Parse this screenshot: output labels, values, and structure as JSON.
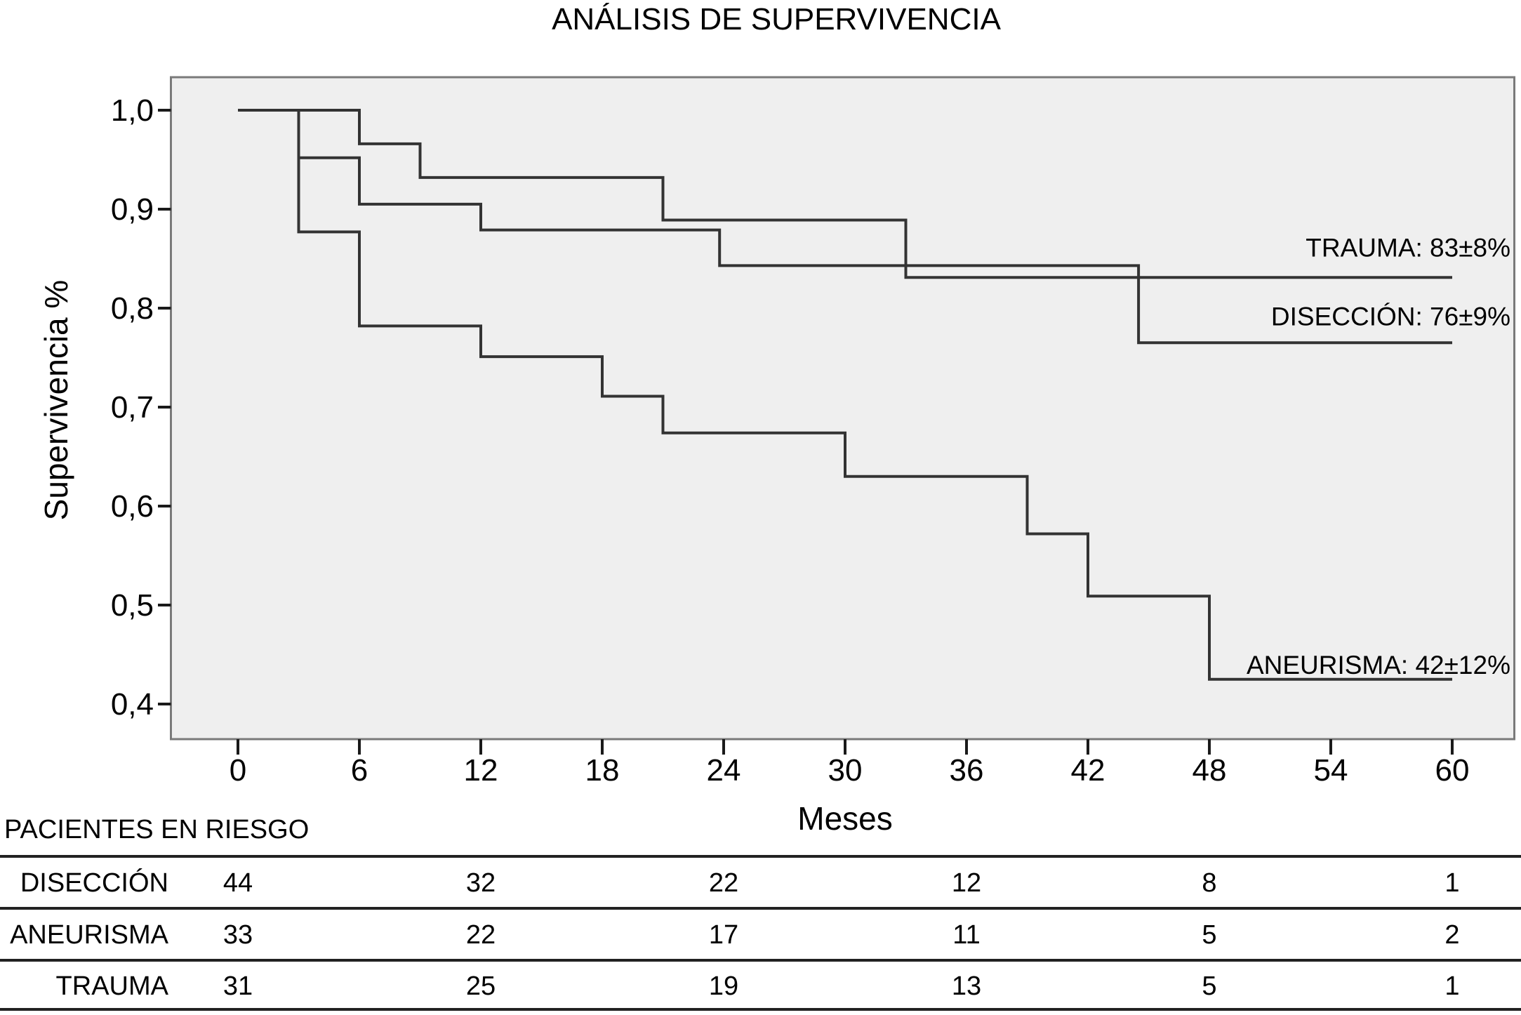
{
  "title": "ANÁLISIS DE SUPERVIVENCIA",
  "chart_data": {
    "type": "line",
    "subtype": "kaplan-meier-step",
    "title": "ANÁLISIS DE SUPERVIVENCIA",
    "xlabel": "Meses",
    "ylabel": "Supervivencia %",
    "xlim": [
      0,
      60
    ],
    "ylim": [
      0.4,
      1.0
    ],
    "grid": false,
    "legend_position": "end-of-curve-right",
    "x_ticks": [
      {
        "month": 0,
        "label": "0"
      },
      {
        "month": 6,
        "label": "6"
      },
      {
        "month": 12,
        "label": "12"
      },
      {
        "month": 18,
        "label": "18"
      },
      {
        "month": 24,
        "label": "24"
      },
      {
        "month": 30,
        "label": "30"
      },
      {
        "month": 36,
        "label": "36"
      },
      {
        "month": 42,
        "label": "42"
      },
      {
        "month": 48,
        "label": "48"
      },
      {
        "month": 54,
        "label": "54"
      },
      {
        "month": 60,
        "label": "60"
      }
    ],
    "y_ticks": [
      {
        "value": 1.0,
        "label": "1,0"
      },
      {
        "value": 0.9,
        "label": "0,9"
      },
      {
        "value": 0.8,
        "label": "0,8"
      },
      {
        "value": 0.7,
        "label": "0,7"
      },
      {
        "value": 0.6,
        "label": "0,6"
      },
      {
        "value": 0.5,
        "label": "0,5"
      },
      {
        "value": 0.4,
        "label": "0,4"
      }
    ],
    "series": [
      {
        "name": "TRAUMA",
        "annotation": "TRAUMA: 83±8%",
        "final_estimate": "83±8%",
        "steps": [
          [
            0,
            1.0
          ],
          [
            6,
            1.0
          ],
          [
            6,
            0.966
          ],
          [
            9,
            0.966
          ],
          [
            9,
            0.932
          ],
          [
            21,
            0.932
          ],
          [
            21,
            0.889
          ],
          [
            33,
            0.889
          ],
          [
            33,
            0.831
          ],
          [
            60,
            0.831
          ]
        ]
      },
      {
        "name": "DISECCIÓN",
        "annotation": "DISECCIÓN: 76±9%",
        "final_estimate": "76±9%",
        "steps": [
          [
            0,
            1.0
          ],
          [
            3,
            1.0
          ],
          [
            3,
            0.952
          ],
          [
            6,
            0.952
          ],
          [
            6,
            0.905
          ],
          [
            12,
            0.905
          ],
          [
            12,
            0.879
          ],
          [
            23.8,
            0.879
          ],
          [
            23.8,
            0.843
          ],
          [
            44.5,
            0.843
          ],
          [
            44.5,
            0.765
          ],
          [
            60,
            0.765
          ]
        ]
      },
      {
        "name": "ANEURISMA",
        "annotation": "ANEURISMA: 42±12%",
        "final_estimate": "42±12%",
        "steps": [
          [
            0,
            1.0
          ],
          [
            3,
            1.0
          ],
          [
            3,
            0.877
          ],
          [
            6,
            0.877
          ],
          [
            6,
            0.782
          ],
          [
            12,
            0.782
          ],
          [
            12,
            0.751
          ],
          [
            18,
            0.751
          ],
          [
            18,
            0.711
          ],
          [
            21,
            0.711
          ],
          [
            21,
            0.674
          ],
          [
            30,
            0.674
          ],
          [
            30,
            0.63
          ],
          [
            39,
            0.63
          ],
          [
            39,
            0.572
          ],
          [
            42,
            0.572
          ],
          [
            42,
            0.509
          ],
          [
            48,
            0.509
          ],
          [
            48,
            0.425
          ],
          [
            60,
            0.425
          ]
        ]
      }
    ]
  },
  "risk_table": {
    "header": "PACIENTES EN RIESGO",
    "time_points": [
      0,
      12,
      24,
      36,
      48,
      60
    ],
    "rows": [
      {
        "label": "DISECCIÓN",
        "values": [
          "44",
          "32",
          "22",
          "12",
          "8",
          "1"
        ]
      },
      {
        "label": "ANEURISMA",
        "values": [
          "33",
          "22",
          "17",
          "11",
          "5",
          "2"
        ]
      },
      {
        "label": "TRAUMA",
        "values": [
          "31",
          "25",
          "19",
          "13",
          "5",
          "1"
        ]
      }
    ]
  },
  "colors": {
    "curve": "#333333",
    "plot_background": "#efefef",
    "plot_border": "#7a7a7a",
    "tick": "#1a1a1a",
    "table_rule": "#222222",
    "text": "#000000",
    "page_background": "#ffffff"
  }
}
